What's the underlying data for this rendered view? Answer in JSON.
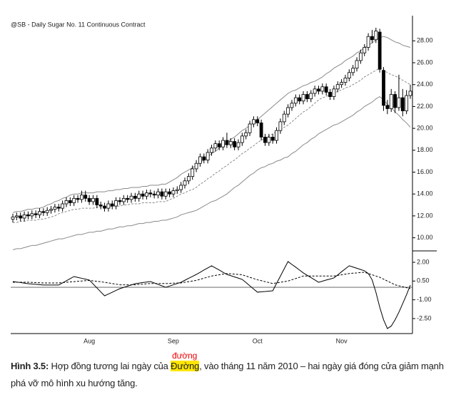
{
  "chart_data": [
    {
      "type": "candlestick",
      "title": "@SB - Daily Sugar No. 11 Continuous Contract",
      "up_color": "#ffffff",
      "down_color": "#000000",
      "wick_color": "#000000",
      "ylim": [
        8.8,
        30.3
      ],
      "yticks": [
        {
          "value": 10,
          "label": "10.00"
        },
        {
          "value": 12,
          "label": "12.00"
        },
        {
          "value": 14,
          "label": "14.00"
        },
        {
          "value": 16,
          "label": "16.00"
        },
        {
          "value": 18,
          "label": "18.00"
        },
        {
          "value": 20,
          "label": "20.00"
        },
        {
          "value": 22,
          "label": "22.00"
        },
        {
          "value": 24,
          "label": "24.00"
        },
        {
          "value": 26,
          "label": "26.00"
        },
        {
          "value": 28,
          "label": "28.00"
        }
      ],
      "open": [
        11.7,
        11.9,
        12.0,
        11.8,
        12.1,
        12.0,
        12.2,
        12.1,
        12.4,
        12.3,
        12.5,
        12.6,
        12.8,
        12.7,
        13.1,
        13.4,
        13.2,
        13.6,
        13.5,
        13.9,
        13.6,
        13.3,
        13.6,
        13.0,
        12.9,
        12.7,
        13.1,
        12.9,
        13.4,
        13.3,
        13.6,
        13.5,
        13.8,
        13.6,
        14.0,
        13.8,
        14.1,
        14.0,
        13.9,
        14.2,
        13.8,
        14.2,
        14.0,
        14.3,
        14.4,
        14.8,
        15.2,
        15.6,
        16.3,
        16.8,
        17.4,
        17.1,
        17.8,
        18.2,
        18.6,
        18.3,
        18.9,
        18.5,
        18.8,
        18.3,
        18.7,
        19.3,
        19.6,
        20.4,
        20.8,
        20.5,
        19.2,
        18.7,
        19.2,
        18.9,
        19.8,
        20.6,
        21.3,
        21.9,
        22.3,
        22.8,
        22.5,
        23.1,
        22.7,
        23.2,
        23.6,
        23.4,
        23.8,
        23.3,
        22.9,
        23.6,
        24.0,
        24.2,
        24.6,
        25.1,
        25.5,
        26.2,
        26.9,
        27.4,
        28.4,
        28.1,
        28.8,
        25.3,
        22.1,
        21.8,
        23.1,
        21.9,
        22.8,
        21.6,
        23.0
      ],
      "high": [
        12.2,
        12.3,
        12.3,
        12.4,
        12.4,
        12.5,
        12.5,
        12.7,
        12.7,
        12.8,
        12.9,
        13.1,
        13.1,
        13.4,
        13.7,
        13.7,
        13.9,
        13.9,
        14.3,
        14.3,
        13.9,
        13.9,
        13.9,
        13.3,
        13.2,
        13.4,
        13.4,
        13.7,
        13.7,
        13.9,
        13.9,
        14.1,
        14.1,
        14.3,
        14.3,
        14.4,
        14.4,
        14.3,
        14.5,
        14.5,
        14.5,
        14.5,
        14.6,
        14.7,
        15.1,
        15.5,
        15.9,
        16.6,
        17.1,
        17.7,
        17.7,
        18.1,
        18.5,
        18.9,
        18.9,
        19.2,
        19.6,
        19.1,
        19.1,
        19.0,
        19.6,
        19.9,
        20.7,
        21.1,
        21.1,
        20.8,
        19.5,
        19.5,
        19.5,
        20.1,
        20.9,
        21.6,
        22.2,
        22.6,
        23.1,
        23.1,
        23.4,
        23.4,
        23.5,
        23.9,
        23.9,
        24.1,
        24.1,
        23.6,
        23.9,
        24.3,
        24.5,
        24.9,
        25.4,
        25.8,
        26.5,
        27.2,
        27.7,
        28.7,
        29.0,
        29.2,
        29.1,
        25.6,
        22.6,
        23.6,
        23.4,
        24.9,
        23.6,
        23.5,
        24.0
      ],
      "low": [
        11.4,
        11.6,
        11.5,
        11.5,
        11.7,
        11.7,
        11.8,
        11.8,
        12.0,
        12.0,
        12.2,
        12.3,
        12.4,
        12.4,
        12.8,
        12.9,
        12.9,
        13.2,
        13.2,
        13.3,
        13.0,
        13.0,
        12.7,
        12.6,
        12.4,
        12.4,
        12.6,
        12.6,
        13.0,
        13.0,
        13.2,
        13.2,
        13.3,
        13.3,
        13.5,
        13.5,
        13.7,
        13.6,
        13.6,
        13.5,
        13.5,
        13.7,
        13.7,
        14.0,
        14.1,
        14.5,
        14.9,
        15.3,
        16.0,
        16.5,
        16.8,
        16.8,
        17.5,
        17.9,
        18.0,
        18.0,
        18.2,
        18.2,
        18.0,
        18.0,
        18.4,
        19.0,
        19.3,
        20.1,
        20.2,
        18.9,
        18.4,
        18.4,
        18.6,
        18.6,
        19.5,
        20.3,
        21.0,
        21.6,
        22.0,
        22.2,
        22.2,
        22.4,
        22.4,
        22.9,
        23.1,
        23.1,
        23.0,
        22.6,
        22.6,
        23.3,
        23.7,
        23.9,
        24.3,
        24.8,
        25.2,
        25.9,
        26.6,
        27.1,
        27.8,
        27.8,
        25.1,
        21.6,
        21.3,
        21.5,
        21.4,
        21.6,
        21.1,
        21.3,
        22.7
      ],
      "close": [
        11.9,
        12.0,
        11.8,
        12.1,
        12.0,
        12.2,
        12.1,
        12.4,
        12.3,
        12.5,
        12.6,
        12.8,
        12.7,
        13.1,
        13.4,
        13.2,
        13.6,
        13.5,
        13.9,
        13.6,
        13.3,
        13.6,
        13.0,
        12.9,
        12.7,
        13.1,
        12.9,
        13.4,
        13.3,
        13.6,
        13.5,
        13.8,
        13.6,
        14.0,
        13.8,
        14.1,
        14.0,
        13.9,
        14.2,
        13.8,
        14.2,
        14.0,
        14.3,
        14.4,
        14.8,
        15.2,
        15.6,
        16.3,
        16.8,
        17.4,
        17.1,
        17.8,
        18.2,
        18.6,
        18.3,
        18.9,
        18.5,
        18.8,
        18.3,
        18.7,
        19.3,
        19.6,
        20.4,
        20.8,
        20.5,
        19.2,
        18.7,
        19.2,
        18.9,
        19.8,
        20.6,
        21.3,
        21.9,
        22.3,
        22.8,
        22.5,
        23.1,
        22.7,
        23.2,
        23.6,
        23.4,
        23.8,
        23.3,
        22.9,
        23.6,
        24.0,
        24.2,
        24.6,
        25.1,
        25.5,
        26.2,
        26.9,
        27.4,
        28.4,
        28.1,
        28.9,
        25.4,
        22.1,
        21.8,
        23.1,
        21.9,
        22.8,
        21.6,
        23.0,
        23.4
      ],
      "series": [
        {
          "color": "#8a8a8a",
          "dashed": false,
          "values": [
            12.3,
            12.4,
            12.4,
            12.5,
            12.6,
            12.6,
            12.7,
            12.7,
            12.8,
            13.0,
            13.1,
            13.3,
            13.4,
            13.6,
            13.7,
            13.9,
            14.0,
            14.0,
            14.1,
            14.1,
            14.1,
            14.1,
            14.2,
            14.2,
            14.2,
            14.3,
            14.3,
            14.4,
            14.4,
            14.5,
            14.5,
            14.6,
            14.6,
            14.6,
            14.7,
            14.7,
            14.8,
            14.8,
            14.8,
            14.9,
            14.9,
            15.1,
            15.3,
            15.5,
            15.8,
            16.0,
            16.2,
            16.4,
            16.6,
            16.9,
            17.1,
            17.4,
            17.7,
            17.9,
            18.2,
            18.4,
            18.7,
            19.0,
            19.2,
            19.5,
            19.8,
            20.0,
            20.3,
            20.5,
            20.8,
            21.1,
            21.4,
            21.7,
            22.0,
            22.3,
            22.6,
            22.9,
            23.2,
            23.4,
            23.5,
            23.7,
            23.9,
            24.0,
            24.2,
            24.3,
            24.5,
            24.7,
            25.0,
            25.2,
            25.5,
            25.7,
            25.9,
            26.2,
            26.4,
            26.6,
            26.9,
            27.1,
            27.4,
            27.6,
            27.8,
            28.1,
            28.3,
            28.4,
            28.3,
            28.1,
            27.9,
            27.8,
            27.6,
            27.5,
            27.4
          ]
        },
        {
          "color": "#8a8a8a",
          "dashed": true,
          "values": [
            11.4,
            11.4,
            11.5,
            11.5,
            11.6,
            11.6,
            11.6,
            11.7,
            11.7,
            11.8,
            11.9,
            12.0,
            12.2,
            12.3,
            12.4,
            12.5,
            12.6,
            12.6,
            12.7,
            12.7,
            12.7,
            12.7,
            12.8,
            12.8,
            12.8,
            12.8,
            12.9,
            12.9,
            12.9,
            13.0,
            13.0,
            13.1,
            13.1,
            13.1,
            13.2,
            13.2,
            13.2,
            13.2,
            13.3,
            13.3,
            13.3,
            13.5,
            13.6,
            13.8,
            14.0,
            14.1,
            14.3,
            14.4,
            14.6,
            14.9,
            15.1,
            15.4,
            15.6,
            15.9,
            16.1,
            16.4,
            16.6,
            16.9,
            17.1,
            17.4,
            17.7,
            17.9,
            18.2,
            18.4,
            18.7,
            18.9,
            19.1,
            19.3,
            19.5,
            19.7,
            19.9,
            20.1,
            20.3,
            20.6,
            20.9,
            21.2,
            21.5,
            21.7,
            22.0,
            22.3,
            22.6,
            22.8,
            22.9,
            23.1,
            23.2,
            23.4,
            23.5,
            23.7,
            23.8,
            24.0,
            24.2,
            24.4,
            24.7,
            24.9,
            25.1,
            25.3,
            25.5,
            25.3,
            25.1,
            24.9,
            24.8,
            24.6,
            24.4,
            24.2,
            24.0
          ]
        },
        {
          "color": "#8a8a8a",
          "dashed": false,
          "values": [
            8.9,
            9.0,
            9.0,
            9.1,
            9.2,
            9.3,
            9.3,
            9.4,
            9.5,
            9.6,
            9.7,
            9.8,
            9.9,
            9.9,
            10.0,
            10.1,
            10.2,
            10.3,
            10.3,
            10.4,
            10.5,
            10.5,
            10.6,
            10.6,
            10.7,
            10.8,
            10.8,
            10.9,
            11.0,
            11.0,
            11.1,
            11.1,
            11.2,
            11.3,
            11.3,
            11.4,
            11.4,
            11.5,
            11.5,
            11.6,
            11.6,
            11.7,
            11.8,
            11.9,
            12.1,
            12.2,
            12.3,
            12.4,
            12.5,
            12.7,
            12.9,
            13.1,
            13.3,
            13.4,
            13.6,
            13.8,
            14.0,
            14.3,
            14.6,
            14.8,
            15.1,
            15.4,
            15.7,
            15.9,
            16.2,
            16.4,
            16.5,
            16.7,
            16.8,
            17.0,
            17.1,
            17.3,
            17.4,
            17.7,
            17.9,
            18.2,
            18.5,
            18.7,
            19.0,
            19.2,
            19.5,
            19.7,
            19.9,
            20.1,
            20.3,
            20.4,
            20.6,
            20.8,
            21.0,
            21.2,
            21.5,
            21.7,
            22.0,
            22.2,
            22.4,
            22.7,
            22.9,
            22.6,
            22.2,
            21.9,
            21.5,
            21.2,
            20.8,
            20.5,
            20.1
          ]
        }
      ]
    },
    {
      "type": "line",
      "ylim": [
        -3.7,
        2.74
      ],
      "yticks": [
        {
          "value": -2.5,
          "label": "-2.50"
        },
        {
          "value": -1,
          "label": "-1.00"
        },
        {
          "value": 0.5,
          "label": "0.50"
        },
        {
          "value": 2,
          "label": "2.00"
        }
      ],
      "reference_line": 0,
      "categories": [
        null,
        null,
        null,
        null,
        null,
        null,
        null,
        null,
        null,
        null,
        null,
        null,
        null,
        null,
        null,
        null,
        null,
        null,
        null,
        null,
        "Aug",
        null,
        null,
        null,
        null,
        null,
        null,
        null,
        null,
        null,
        null,
        null,
        null,
        null,
        null,
        null,
        null,
        null,
        null,
        null,
        null,
        null,
        "Sep",
        null,
        null,
        null,
        null,
        null,
        null,
        null,
        null,
        null,
        null,
        null,
        null,
        null,
        null,
        null,
        null,
        null,
        null,
        null,
        null,
        null,
        "Oct",
        null,
        null,
        null,
        null,
        null,
        null,
        null,
        null,
        null,
        null,
        null,
        null,
        null,
        null,
        null,
        null,
        null,
        null,
        null,
        null,
        null,
        "Nov",
        null,
        null,
        null,
        null,
        null,
        null,
        null,
        null,
        null,
        null,
        null,
        null,
        null,
        null,
        null,
        null,
        null,
        null
      ],
      "series": [
        {
          "color": "#000000",
          "dashed": false,
          "values": [
            0.46,
            0.42,
            0.38,
            0.33,
            0.29,
            0.26,
            0.24,
            0.21,
            0.18,
            0.18,
            0.18,
            0.18,
            0.18,
            0.35,
            0.52,
            0.69,
            0.86,
            0.79,
            0.72,
            0.65,
            0.58,
            0.27,
            -0.05,
            -0.37,
            -0.68,
            -0.54,
            -0.4,
            -0.25,
            -0.11,
            -0.01,
            0.09,
            0.19,
            0.29,
            0.33,
            0.38,
            0.42,
            0.46,
            0.35,
            0.23,
            0.12,
            0.0,
            0.1,
            0.2,
            0.3,
            0.4,
            0.56,
            0.72,
            0.87,
            1.03,
            1.2,
            1.38,
            1.55,
            1.72,
            1.55,
            1.38,
            1.2,
            1.03,
            0.93,
            0.83,
            0.73,
            0.63,
            0.38,
            0.12,
            -0.14,
            -0.39,
            -0.36,
            -0.34,
            -0.31,
            -0.28,
            0.31,
            0.89,
            1.48,
            2.06,
            1.83,
            1.61,
            1.38,
            1.15,
            0.96,
            0.78,
            0.59,
            0.4,
            0.49,
            0.58,
            0.66,
            0.75,
            0.99,
            1.24,
            1.48,
            1.72,
            1.62,
            1.52,
            1.42,
            1.32,
            1.1,
            0.6,
            -0.4,
            -1.6,
            -2.6,
            -3.3,
            -3.1,
            -2.6,
            -2.0,
            -1.3,
            -0.6,
            0.18
          ]
        },
        {
          "color": "#000000",
          "dashed": true,
          "values": [
            0.4,
            0.4,
            0.4,
            0.4,
            0.4,
            0.39,
            0.38,
            0.36,
            0.35,
            0.35,
            0.35,
            0.35,
            0.35,
            0.38,
            0.4,
            0.43,
            0.45,
            0.48,
            0.5,
            0.53,
            0.55,
            0.51,
            0.48,
            0.44,
            0.4,
            0.35,
            0.3,
            0.25,
            0.2,
            0.2,
            0.2,
            0.2,
            0.2,
            0.23,
            0.25,
            0.28,
            0.3,
            0.3,
            0.3,
            0.3,
            0.3,
            0.31,
            0.33,
            0.34,
            0.35,
            0.4,
            0.45,
            0.5,
            0.55,
            0.64,
            0.73,
            0.81,
            0.9,
            0.95,
            1.0,
            1.05,
            1.1,
            1.08,
            1.05,
            1.03,
            1.0,
            0.9,
            0.8,
            0.7,
            0.6,
            0.53,
            0.45,
            0.38,
            0.3,
            0.35,
            0.4,
            0.45,
            0.5,
            0.6,
            0.7,
            0.8,
            0.9,
            0.9,
            0.9,
            0.9,
            0.9,
            0.9,
            0.9,
            0.9,
            0.9,
            0.95,
            1.0,
            1.05,
            1.1,
            1.13,
            1.15,
            1.18,
            1.2,
            1.1,
            1.0,
            0.9,
            0.8,
            0.65,
            0.5,
            0.35,
            0.2,
            0.12,
            0.05,
            -0.03,
            -0.1
          ]
        }
      ]
    }
  ],
  "caption": {
    "label": "Hình 3.5:",
    "text_before": " Hợp đồng tương lai ngày của ",
    "highlight": "Đường",
    "annotation": "đường",
    "text_after": ", vào tháng 11 năm 2010 – hai ngày giá đóng cửa giảm mạnh phá vỡ mô hình xu hướng tăng."
  }
}
